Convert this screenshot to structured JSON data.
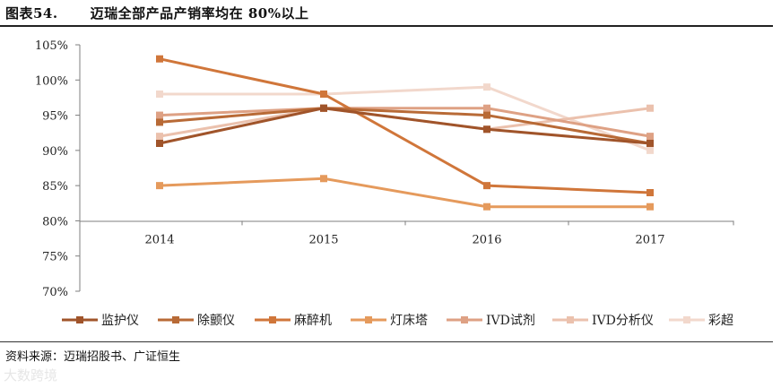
{
  "header": {
    "figure_number": "图表54.",
    "title": "迈瑞全部产品产销率均在 80%以上"
  },
  "footer": {
    "source": "资料来源：迈瑞招股书、广证恒生",
    "watermark": "大数跨境"
  },
  "colors": {
    "axis": "#7f7f7f"
  },
  "chart_data": {
    "type": "line",
    "x": [
      "2014",
      "2015",
      "2016",
      "2017"
    ],
    "ylim": [
      70,
      105
    ],
    "yticks": [
      "70%",
      "75%",
      "80%",
      "85%",
      "90%",
      "95%",
      "100%",
      "105%"
    ],
    "legend_position": "bottom",
    "grid": false,
    "series": [
      {
        "name": "监护仪",
        "color": "#a0542a",
        "values": [
          91,
          96,
          93,
          91
        ]
      },
      {
        "name": "除颤仪",
        "color": "#b86a36",
        "values": [
          94,
          96,
          95,
          91
        ]
      },
      {
        "name": "麻醉机",
        "color": "#d0763a",
        "values": [
          103,
          98,
          85,
          84
        ]
      },
      {
        "name": "灯床塔",
        "color": "#e59a5c",
        "values": [
          85,
          86,
          82,
          82
        ]
      },
      {
        "name": "IVD试剂",
        "color": "#dea184",
        "values": [
          95,
          96,
          96,
          92
        ]
      },
      {
        "name": "IVD分析仪",
        "color": "#ebc1ad",
        "values": [
          92,
          96,
          93,
          96
        ]
      },
      {
        "name": "彩超",
        "color": "#f2d8cc",
        "values": [
          98,
          98,
          99,
          90
        ]
      }
    ]
  }
}
